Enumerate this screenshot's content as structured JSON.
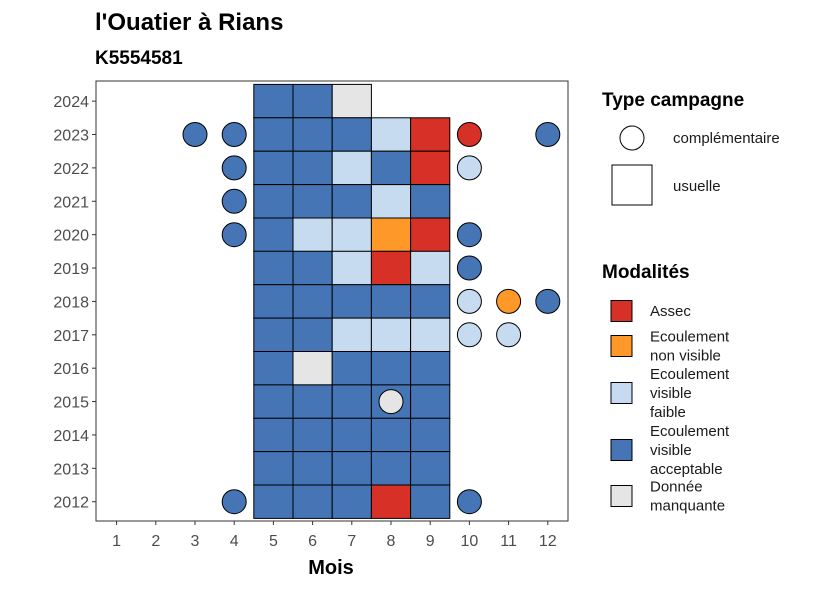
{
  "chart_data": {
    "type": "heatmap",
    "title": "l'Ouatier à Rians",
    "subtitle": "K5554581",
    "xlabel": "Mois",
    "ylabel": "",
    "x_ticks": [
      "1",
      "2",
      "3",
      "4",
      "5",
      "6",
      "7",
      "8",
      "9",
      "10",
      "11",
      "12"
    ],
    "y_ticks": [
      "2012",
      "2013",
      "2014",
      "2015",
      "2016",
      "2017",
      "2018",
      "2019",
      "2020",
      "2021",
      "2022",
      "2023",
      "2024"
    ],
    "legend_campagne": {
      "title": "Type campagne",
      "items": [
        {
          "key": "complementaire",
          "label": "complémentaire",
          "shape": "circle"
        },
        {
          "key": "usuelle",
          "label": "usuelle",
          "shape": "square"
        }
      ]
    },
    "legend_modalites": {
      "title": "Modalités",
      "items": [
        {
          "key": "assec",
          "lines": [
            "Assec"
          ],
          "color": "#d73027"
        },
        {
          "key": "ecoul_nv",
          "lines": [
            "Ecoulement",
            "non visible"
          ],
          "color": "#fe9929"
        },
        {
          "key": "ecoul_vf",
          "lines": [
            "Ecoulement",
            "visible",
            "faible"
          ],
          "color": "#c6dbef"
        },
        {
          "key": "ecoul_va",
          "lines": [
            "Ecoulement",
            "visible",
            "acceptable"
          ],
          "color": "#4575b4"
        },
        {
          "key": "manquante",
          "lines": [
            "Donnée",
            "manquante"
          ],
          "color": "#e5e5e5"
        }
      ]
    },
    "usuelle": [
      {
        "year": 2024,
        "month": 5,
        "m": "ecoul_va"
      },
      {
        "year": 2024,
        "month": 6,
        "m": "ecoul_va"
      },
      {
        "year": 2024,
        "month": 7,
        "m": "manquante"
      },
      {
        "year": 2023,
        "month": 5,
        "m": "ecoul_va"
      },
      {
        "year": 2023,
        "month": 6,
        "m": "ecoul_va"
      },
      {
        "year": 2023,
        "month": 7,
        "m": "ecoul_va"
      },
      {
        "year": 2023,
        "month": 8,
        "m": "ecoul_vf"
      },
      {
        "year": 2023,
        "month": 9,
        "m": "assec"
      },
      {
        "year": 2022,
        "month": 5,
        "m": "ecoul_va"
      },
      {
        "year": 2022,
        "month": 6,
        "m": "ecoul_va"
      },
      {
        "year": 2022,
        "month": 7,
        "m": "ecoul_vf"
      },
      {
        "year": 2022,
        "month": 8,
        "m": "ecoul_va"
      },
      {
        "year": 2022,
        "month": 9,
        "m": "assec"
      },
      {
        "year": 2021,
        "month": 5,
        "m": "ecoul_va"
      },
      {
        "year": 2021,
        "month": 6,
        "m": "ecoul_va"
      },
      {
        "year": 2021,
        "month": 7,
        "m": "ecoul_va"
      },
      {
        "year": 2021,
        "month": 8,
        "m": "ecoul_vf"
      },
      {
        "year": 2021,
        "month": 9,
        "m": "ecoul_va"
      },
      {
        "year": 2020,
        "month": 5,
        "m": "ecoul_va"
      },
      {
        "year": 2020,
        "month": 6,
        "m": "ecoul_vf"
      },
      {
        "year": 2020,
        "month": 7,
        "m": "ecoul_vf"
      },
      {
        "year": 2020,
        "month": 8,
        "m": "ecoul_nv"
      },
      {
        "year": 2020,
        "month": 9,
        "m": "assec"
      },
      {
        "year": 2019,
        "month": 5,
        "m": "ecoul_va"
      },
      {
        "year": 2019,
        "month": 6,
        "m": "ecoul_va"
      },
      {
        "year": 2019,
        "month": 7,
        "m": "ecoul_vf"
      },
      {
        "year": 2019,
        "month": 8,
        "m": "assec"
      },
      {
        "year": 2019,
        "month": 9,
        "m": "ecoul_vf"
      },
      {
        "year": 2018,
        "month": 5,
        "m": "ecoul_va"
      },
      {
        "year": 2018,
        "month": 6,
        "m": "ecoul_va"
      },
      {
        "year": 2018,
        "month": 7,
        "m": "ecoul_va"
      },
      {
        "year": 2018,
        "month": 8,
        "m": "ecoul_va"
      },
      {
        "year": 2018,
        "month": 9,
        "m": "ecoul_va"
      },
      {
        "year": 2017,
        "month": 5,
        "m": "ecoul_va"
      },
      {
        "year": 2017,
        "month": 6,
        "m": "ecoul_va"
      },
      {
        "year": 2017,
        "month": 7,
        "m": "ecoul_vf"
      },
      {
        "year": 2017,
        "month": 8,
        "m": "ecoul_vf"
      },
      {
        "year": 2017,
        "month": 9,
        "m": "ecoul_vf"
      },
      {
        "year": 2016,
        "month": 5,
        "m": "ecoul_va"
      },
      {
        "year": 2016,
        "month": 6,
        "m": "manquante"
      },
      {
        "year": 2016,
        "month": 7,
        "m": "ecoul_va"
      },
      {
        "year": 2016,
        "month": 8,
        "m": "ecoul_va"
      },
      {
        "year": 2016,
        "month": 9,
        "m": "ecoul_va"
      },
      {
        "year": 2015,
        "month": 5,
        "m": "ecoul_va"
      },
      {
        "year": 2015,
        "month": 6,
        "m": "ecoul_va"
      },
      {
        "year": 2015,
        "month": 7,
        "m": "ecoul_va"
      },
      {
        "year": 2015,
        "month": 8,
        "m": "ecoul_va"
      },
      {
        "year": 2015,
        "month": 9,
        "m": "ecoul_va"
      },
      {
        "year": 2014,
        "month": 5,
        "m": "ecoul_va"
      },
      {
        "year": 2014,
        "month": 6,
        "m": "ecoul_va"
      },
      {
        "year": 2014,
        "month": 7,
        "m": "ecoul_va"
      },
      {
        "year": 2014,
        "month": 8,
        "m": "ecoul_va"
      },
      {
        "year": 2014,
        "month": 9,
        "m": "ecoul_va"
      },
      {
        "year": 2013,
        "month": 5,
        "m": "ecoul_va"
      },
      {
        "year": 2013,
        "month": 6,
        "m": "ecoul_va"
      },
      {
        "year": 2013,
        "month": 7,
        "m": "ecoul_va"
      },
      {
        "year": 2013,
        "month": 8,
        "m": "ecoul_va"
      },
      {
        "year": 2013,
        "month": 9,
        "m": "ecoul_va"
      },
      {
        "year": 2012,
        "month": 5,
        "m": "ecoul_va"
      },
      {
        "year": 2012,
        "month": 6,
        "m": "ecoul_va"
      },
      {
        "year": 2012,
        "month": 7,
        "m": "ecoul_va"
      },
      {
        "year": 2012,
        "month": 8,
        "m": "assec"
      },
      {
        "year": 2012,
        "month": 9,
        "m": "ecoul_va"
      }
    ],
    "complementaire": [
      {
        "year": 2023,
        "month": 3,
        "m": "ecoul_va"
      },
      {
        "year": 2023,
        "month": 4,
        "m": "ecoul_va"
      },
      {
        "year": 2023,
        "month": 10,
        "m": "assec"
      },
      {
        "year": 2023,
        "month": 12,
        "m": "ecoul_va"
      },
      {
        "year": 2022,
        "month": 4,
        "m": "ecoul_va"
      },
      {
        "year": 2022,
        "month": 10,
        "m": "ecoul_vf"
      },
      {
        "year": 2021,
        "month": 4,
        "m": "ecoul_va"
      },
      {
        "year": 2020,
        "month": 4,
        "m": "ecoul_va"
      },
      {
        "year": 2020,
        "month": 10,
        "m": "ecoul_va"
      },
      {
        "year": 2019,
        "month": 10,
        "m": "ecoul_va"
      },
      {
        "year": 2018,
        "month": 10,
        "m": "ecoul_vf"
      },
      {
        "year": 2018,
        "month": 11,
        "m": "ecoul_nv"
      },
      {
        "year": 2018,
        "month": 12,
        "m": "ecoul_va"
      },
      {
        "year": 2017,
        "month": 10,
        "m": "ecoul_vf"
      },
      {
        "year": 2017,
        "month": 11,
        "m": "ecoul_vf"
      },
      {
        "year": 2015,
        "month": 8,
        "m": "manquante"
      },
      {
        "year": 2012,
        "month": 4,
        "m": "ecoul_va"
      },
      {
        "year": 2012,
        "month": 10,
        "m": "ecoul_va"
      }
    ]
  }
}
